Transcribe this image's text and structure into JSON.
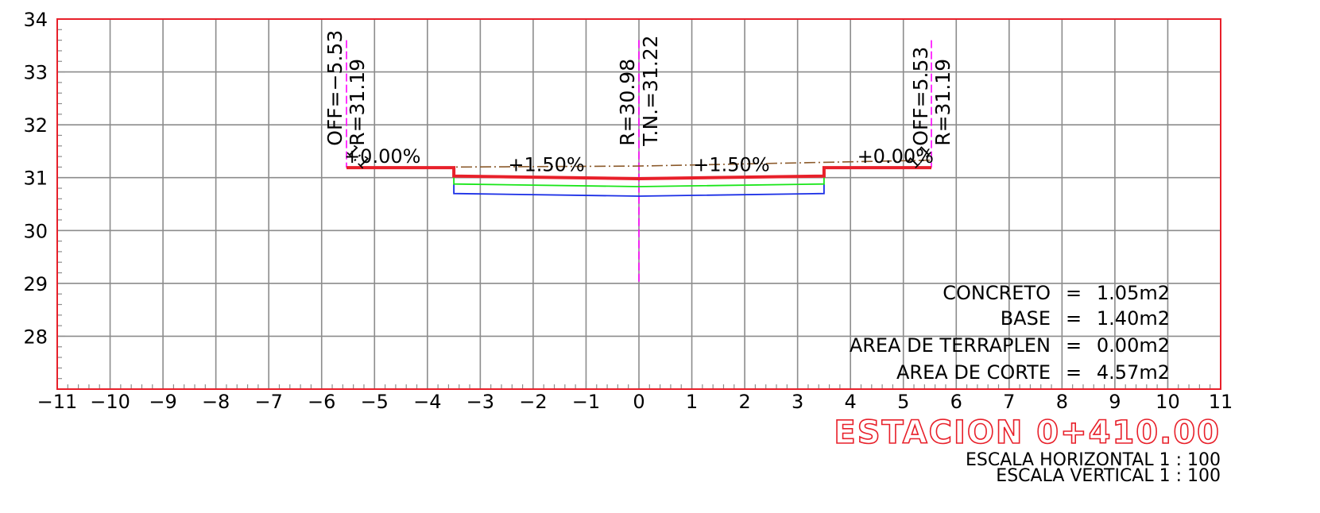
{
  "chart_data": {
    "type": "cross-section",
    "x_ticks": [
      -11,
      -10,
      -9,
      -8,
      -7,
      -6,
      -5,
      -4,
      -3,
      -2,
      -1,
      0,
      1,
      2,
      3,
      4,
      5,
      6,
      7,
      8,
      9,
      10,
      11
    ],
    "y_ticks": [
      28,
      29,
      30,
      31,
      32,
      33,
      34
    ],
    "xlim": [
      -11,
      11
    ],
    "ylim": [
      27,
      34
    ],
    "grid": true,
    "colors": {
      "grid": "#8c8c8c",
      "frame": "#e8202a",
      "finished_grade": "#e8202a",
      "subgrade_green": "#19e619",
      "subgrade_blue": "#1a2ee6",
      "natural_ground": "#8b5a2b",
      "centerline": "#ff00ff",
      "text": "#000000",
      "title": "#e8202a"
    },
    "finished_grade": [
      [
        -5.53,
        31.19
      ],
      [
        -3.5,
        31.19
      ],
      [
        -3.5,
        31.03
      ],
      [
        0,
        30.98
      ],
      [
        3.5,
        31.03
      ],
      [
        3.5,
        31.19
      ],
      [
        5.53,
        31.19
      ]
    ],
    "subgrade_green": [
      [
        -3.5,
        31.03
      ],
      [
        -3.5,
        30.88
      ],
      [
        0,
        30.83
      ],
      [
        3.5,
        30.88
      ],
      [
        3.5,
        31.03
      ]
    ],
    "subgrade_blue": [
      [
        -3.5,
        30.88
      ],
      [
        -3.5,
        30.7
      ],
      [
        0,
        30.65
      ],
      [
        3.5,
        30.7
      ],
      [
        3.5,
        30.88
      ]
    ],
    "natural_ground": [
      [
        -5.53,
        31.19
      ],
      [
        0,
        31.22
      ],
      [
        5.53,
        31.33
      ]
    ],
    "centerlines": [
      {
        "x": -5.53,
        "y_top": 33.6,
        "y_bottom": 31.19
      },
      {
        "x": 0,
        "y_top": 33.6,
        "y_bottom": 29.0
      },
      {
        "x": 5.53,
        "y_top": 33.6,
        "y_bottom": 31.19
      }
    ],
    "vertical_labels": [
      {
        "text": "OFF=−5.53",
        "x": -5.75,
        "y": 31.6
      },
      {
        "text": "R=31.19",
        "x": -5.33,
        "y": 31.6
      },
      {
        "text": "R=30.98",
        "x": -0.22,
        "y": 31.6
      },
      {
        "text": "T.N.=31.22",
        "x": 0.22,
        "y": 31.6
      },
      {
        "text": "OFF=5.53",
        "x": 5.33,
        "y": 31.6
      },
      {
        "text": "R=31.19",
        "x": 5.75,
        "y": 31.6
      }
    ],
    "slope_labels": [
      {
        "text": "+0.00%",
        "x": -4.85,
        "y": 31.28
      },
      {
        "text": "+1.50%",
        "x": -1.75,
        "y": 31.12
      },
      {
        "text": "+1.50%",
        "x": 1.75,
        "y": 31.12
      },
      {
        "text": "+0.00%",
        "x": 4.85,
        "y": 31.28
      }
    ],
    "slope_ratios": [
      {
        "text": "1:1",
        "x": -5.38,
        "y": 31.32,
        "angle": 45
      },
      {
        "text": "1:1",
        "x": 5.38,
        "y": 31.32,
        "angle": -45
      }
    ],
    "areas": [
      {
        "label": "CONCRETO",
        "eq": "=",
        "value": "1.05m2"
      },
      {
        "label": "BASE",
        "eq": "=",
        "value": "1.40m2"
      },
      {
        "label": "AREA DE TERRAPLEN",
        "eq": "=",
        "value": "0.00m2"
      },
      {
        "label": "AREA DE CORTE",
        "eq": "=",
        "value": "4.57m2"
      }
    ],
    "station": "ESTACION 0+410.00",
    "scales": [
      "ESCALA HORIZONTAL 1 : 100",
      "ESCALA VERTICAL 1 : 100"
    ]
  }
}
